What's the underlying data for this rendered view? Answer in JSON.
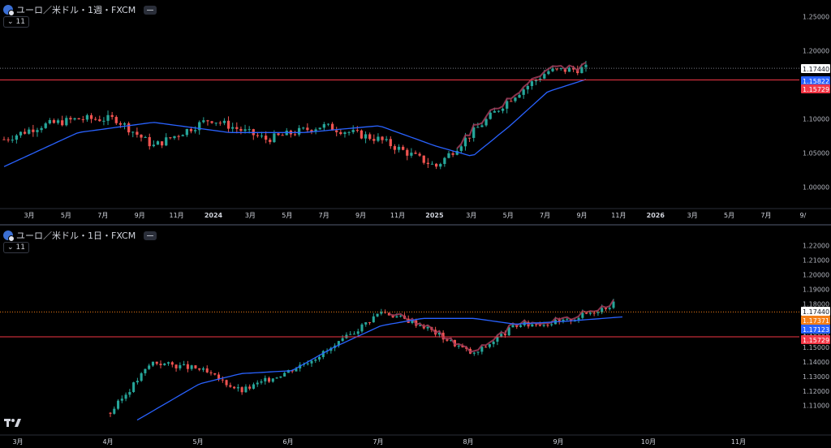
{
  "colors": {
    "up": "#26a69a",
    "down": "#ef5350",
    "ma": "#2962ff",
    "band": "#a33c5b",
    "red_line": "#f23645",
    "orange": "#f57f17",
    "last_label": "#ffffff"
  },
  "top": {
    "title": "ユーロ／米ドル・1週・FXCM",
    "indicator_count": "11",
    "x_ticks": [
      "3月",
      "5月",
      "7月",
      "9月",
      "11月",
      "2024",
      "3月",
      "5月",
      "7月",
      "9月",
      "11月",
      "2025",
      "3月",
      "5月",
      "7月",
      "9月",
      "11月",
      "2026",
      "3月",
      "5月",
      "7月",
      "9/"
    ],
    "y_ticks": [
      "1.25000",
      "1.20000",
      "1.15000",
      "1.10000",
      "1.05000",
      "1.00000"
    ],
    "price_labels": [
      "1.17440",
      "1.15822",
      "1.15729"
    ]
  },
  "bottom": {
    "title": "ユーロ／米ドル・1日・FXCM",
    "indicator_count": "11",
    "x_ticks": [
      "3月",
      "4月",
      "5月",
      "6月",
      "7月",
      "8月",
      "9月",
      "10月",
      "11月"
    ],
    "y_ticks": [
      "1.22000",
      "1.21000",
      "1.20000",
      "1.19000",
      "1.18000",
      "1.17000",
      "1.16000",
      "1.15000",
      "1.14000",
      "1.13000",
      "1.12000",
      "1.11000"
    ],
    "price_labels": [
      "1.17440",
      "1.17371",
      "1.17123",
      "1.15729"
    ]
  },
  "chart_data": [
    {
      "type": "candlestick",
      "title": "ユーロ／米ドル・1週・FXCM",
      "ylim": [
        0.985,
        1.258
      ],
      "y_ticks": [
        1.25,
        1.2,
        1.15,
        1.1,
        1.05,
        1.0
      ],
      "price_lines": [
        {
          "value": 1.1744,
          "label": "1.17440",
          "style": "dotted"
        },
        {
          "value": 1.15822,
          "label": "1.15822",
          "style": "label"
        },
        {
          "value": 1.15729,
          "label": "1.15729",
          "style": "solid"
        }
      ],
      "series_trend": {
        "date": [
          "2023-02",
          "2023-04",
          "2023-06",
          "2023-08",
          "2023-10",
          "2024-01",
          "2024-04",
          "2024-07",
          "2024-10",
          "2025-01",
          "2025-03",
          "2025-05",
          "2025-07",
          "2025-09"
        ],
        "close": [
          1.07,
          1.09,
          1.1,
          1.1,
          1.06,
          1.1,
          1.07,
          1.09,
          1.07,
          1.03,
          1.08,
          1.13,
          1.17,
          1.174
        ]
      },
      "moving_average": {
        "date": [
          "2023-02",
          "2023-06",
          "2023-10",
          "2024-02",
          "2024-06",
          "2024-10",
          "2025-01",
          "2025-03",
          "2025-05",
          "2025-07",
          "2025-09"
        ],
        "value": [
          1.03,
          1.08,
          1.095,
          1.08,
          1.08,
          1.09,
          1.06,
          1.045,
          1.09,
          1.14,
          1.158
        ]
      }
    },
    {
      "type": "candlestick",
      "title": "ユーロ／米ドル・1日・FXCM",
      "ylim": [
        1.102,
        1.226
      ],
      "y_ticks": [
        1.22,
        1.21,
        1.2,
        1.19,
        1.18,
        1.17,
        1.16,
        1.15,
        1.14,
        1.13,
        1.12,
        1.11
      ],
      "price_lines": [
        {
          "value": 1.1744,
          "label": "1.17440",
          "style": "dotted"
        },
        {
          "value": 1.17371,
          "label": "1.17371",
          "style": "label"
        },
        {
          "value": 1.17123,
          "label": "1.17123",
          "style": "label"
        },
        {
          "value": 1.15729,
          "label": "1.15729",
          "style": "solid"
        }
      ],
      "series_trend": {
        "date": [
          "2025-04-01",
          "2025-04-15",
          "2025-05-01",
          "2025-05-15",
          "2025-06-01",
          "2025-06-15",
          "2025-07-01",
          "2025-07-15",
          "2025-08-01",
          "2025-08-15",
          "2025-09-01",
          "2025-09-17"
        ],
        "close": [
          1.105,
          1.14,
          1.135,
          1.12,
          1.135,
          1.15,
          1.175,
          1.165,
          1.145,
          1.165,
          1.168,
          1.18
        ]
      },
      "moving_average": {
        "date": [
          "2025-04-10",
          "2025-05-01",
          "2025-05-15",
          "2025-06-01",
          "2025-06-15",
          "2025-07-01",
          "2025-07-15",
          "2025-08-01",
          "2025-08-15",
          "2025-09-01",
          "2025-09-20"
        ],
        "value": [
          1.1,
          1.125,
          1.132,
          1.134,
          1.15,
          1.165,
          1.17,
          1.17,
          1.166,
          1.168,
          1.171
        ]
      }
    }
  ]
}
